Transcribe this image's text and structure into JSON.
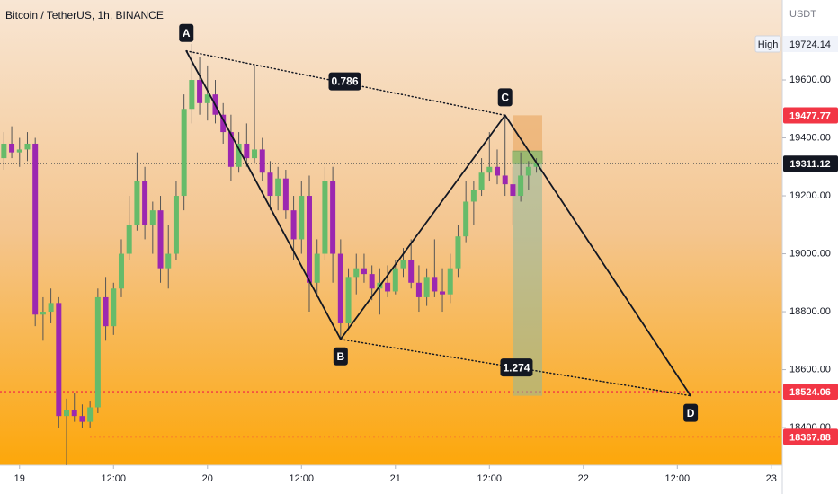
{
  "chart_data": {
    "type": "candlestick",
    "title": "Bitcoin / TetherUS, 1h, BINANCE",
    "currency": "USDT",
    "up_color": "#66bb6a",
    "down_color": "#9c27b0",
    "xlim": [
      -2.5,
      97.4
    ],
    "xticks": [
      {
        "value": 0,
        "label": "19"
      },
      {
        "value": 12,
        "label": "12:00"
      },
      {
        "value": 24,
        "label": "20"
      },
      {
        "value": 36,
        "label": "12:00"
      },
      {
        "value": 48,
        "label": "21"
      },
      {
        "value": 60,
        "label": "12:00"
      },
      {
        "value": 72,
        "label": "22"
      },
      {
        "value": 84,
        "label": "12:00"
      },
      {
        "value": 96,
        "label": "23"
      }
    ],
    "ylim": [
      18270,
      19876
    ],
    "yticks": [
      {
        "value": 18400,
        "label": "18400.00"
      },
      {
        "value": 18600,
        "label": "18600.00"
      },
      {
        "value": 18800,
        "label": "18800.00"
      },
      {
        "value": 19000,
        "label": "19000.00"
      },
      {
        "value": 19200,
        "label": "19200.00"
      },
      {
        "value": 19400,
        "label": "19400.00"
      },
      {
        "value": 19600,
        "label": "19600.00"
      }
    ],
    "grid": false,
    "x": [
      -2,
      -1,
      0,
      1,
      2,
      3,
      4,
      5,
      6,
      7,
      8,
      9,
      10,
      11,
      12,
      13,
      14,
      15,
      16,
      17,
      18,
      19,
      20,
      21,
      22,
      23,
      24,
      25,
      26,
      27,
      28,
      29,
      30,
      31,
      32,
      33,
      34,
      35,
      36,
      37,
      38,
      39,
      40,
      41,
      42,
      43,
      44,
      45,
      46,
      47,
      48,
      49,
      50,
      51,
      52,
      53,
      54,
      55,
      56,
      57,
      58,
      59,
      60,
      61,
      62,
      63,
      64,
      65,
      66
    ],
    "open": [
      19330,
      19380,
      19350,
      19360,
      19380,
      18790,
      18800,
      18830,
      18440,
      18460,
      18440,
      18420,
      18470,
      18850,
      18750,
      18880,
      19000,
      19100,
      19250,
      19100,
      19150,
      18950,
      19000,
      19200,
      19500,
      19600,
      19520,
      19550,
      19480,
      19420,
      19300,
      19380,
      19330,
      19360,
      19280,
      19200,
      19260,
      19150,
      19050,
      19200,
      18900,
      19000,
      19250,
      19000,
      18760,
      18920,
      18950,
      18930,
      18880,
      18900,
      18870,
      18950,
      18980,
      18900,
      18850,
      18920,
      18870,
      18860,
      18950,
      19060,
      19180,
      19220,
      19280,
      19300,
      19270,
      19240,
      19200,
      19270,
      19300
    ],
    "high": [
      19420,
      19440,
      19400,
      19420,
      19400,
      18850,
      18880,
      18850,
      18500,
      18520,
      18480,
      18490,
      18880,
      18920,
      18900,
      19050,
      19200,
      19350,
      19300,
      19180,
      19200,
      19100,
      19250,
      19550,
      19724.14,
      19680,
      19650,
      19600,
      19520,
      19480,
      19420,
      19450,
      19650,
      19400,
      19320,
      19300,
      19290,
      19200,
      19250,
      19270,
      19050,
      19300,
      19300,
      19050,
      18950,
      19000,
      19000,
      18960,
      18950,
      18960,
      18980,
      19020,
      19050,
      18960,
      18950,
      19050,
      18950,
      19000,
      19100,
      19250,
      19250,
      19330,
      19420,
      19360,
      19477.77,
      19300,
      19350,
      19320,
      19330
    ],
    "low": [
      19290,
      19330,
      19300,
      19320,
      18750,
      18700,
      18760,
      18400,
      18270,
      18420,
      18400,
      18400,
      18450,
      18700,
      18720,
      18850,
      18980,
      19080,
      19050,
      19000,
      18900,
      18880,
      18980,
      19150,
      19450,
      19480,
      19460,
      19450,
      19380,
      19250,
      19280,
      19300,
      19310,
      19250,
      19150,
      19150,
      19120,
      18980,
      19000,
      18800,
      18850,
      18980,
      18900,
      18705,
      18740,
      18860,
      18900,
      18840,
      18790,
      18850,
      18860,
      18920,
      18880,
      18800,
      18820,
      18850,
      18800,
      18830,
      18920,
      19040,
      19100,
      19200,
      19250,
      19240,
      19200,
      19100,
      19180,
      19220,
      19280
    ],
    "close": [
      19380,
      19350,
      19360,
      19380,
      18790,
      18800,
      18830,
      18440,
      18460,
      18440,
      18420,
      18470,
      18850,
      18750,
      18880,
      19000,
      19100,
      19250,
      19100,
      19150,
      18950,
      19000,
      19200,
      19500,
      19600,
      19520,
      19550,
      19480,
      19420,
      19300,
      19380,
      19330,
      19360,
      19280,
      19200,
      19260,
      19150,
      19050,
      19200,
      18900,
      19000,
      19250,
      19000,
      18760,
      18920,
      18950,
      18930,
      18880,
      18900,
      18870,
      18950,
      18980,
      18900,
      18850,
      18920,
      18870,
      18860,
      18950,
      19060,
      19180,
      19220,
      19280,
      19300,
      19270,
      19240,
      19200,
      19270,
      19300,
      19311.12
    ],
    "high_marker": {
      "label": "High",
      "value": 19724.14
    },
    "last_price": 19311.12,
    "levels": [
      {
        "value": 19477.77,
        "color": "#f23645",
        "line": false
      },
      {
        "value": 18524.06,
        "color": "#f23645",
        "line": true
      },
      {
        "value": 18367.88,
        "color": "#f23645",
        "line": true
      }
    ],
    "pattern": {
      "points": [
        {
          "label": "A",
          "x": 21.3,
          "y": 19700
        },
        {
          "label": "B",
          "x": 41,
          "y": 18705
        },
        {
          "label": "C",
          "x": 62,
          "y": 19478
        },
        {
          "label": "D",
          "x": 85.7,
          "y": 18510
        }
      ],
      "ratios": [
        {
          "label": "0.786"
        },
        {
          "label": "1.274"
        }
      ]
    }
  }
}
